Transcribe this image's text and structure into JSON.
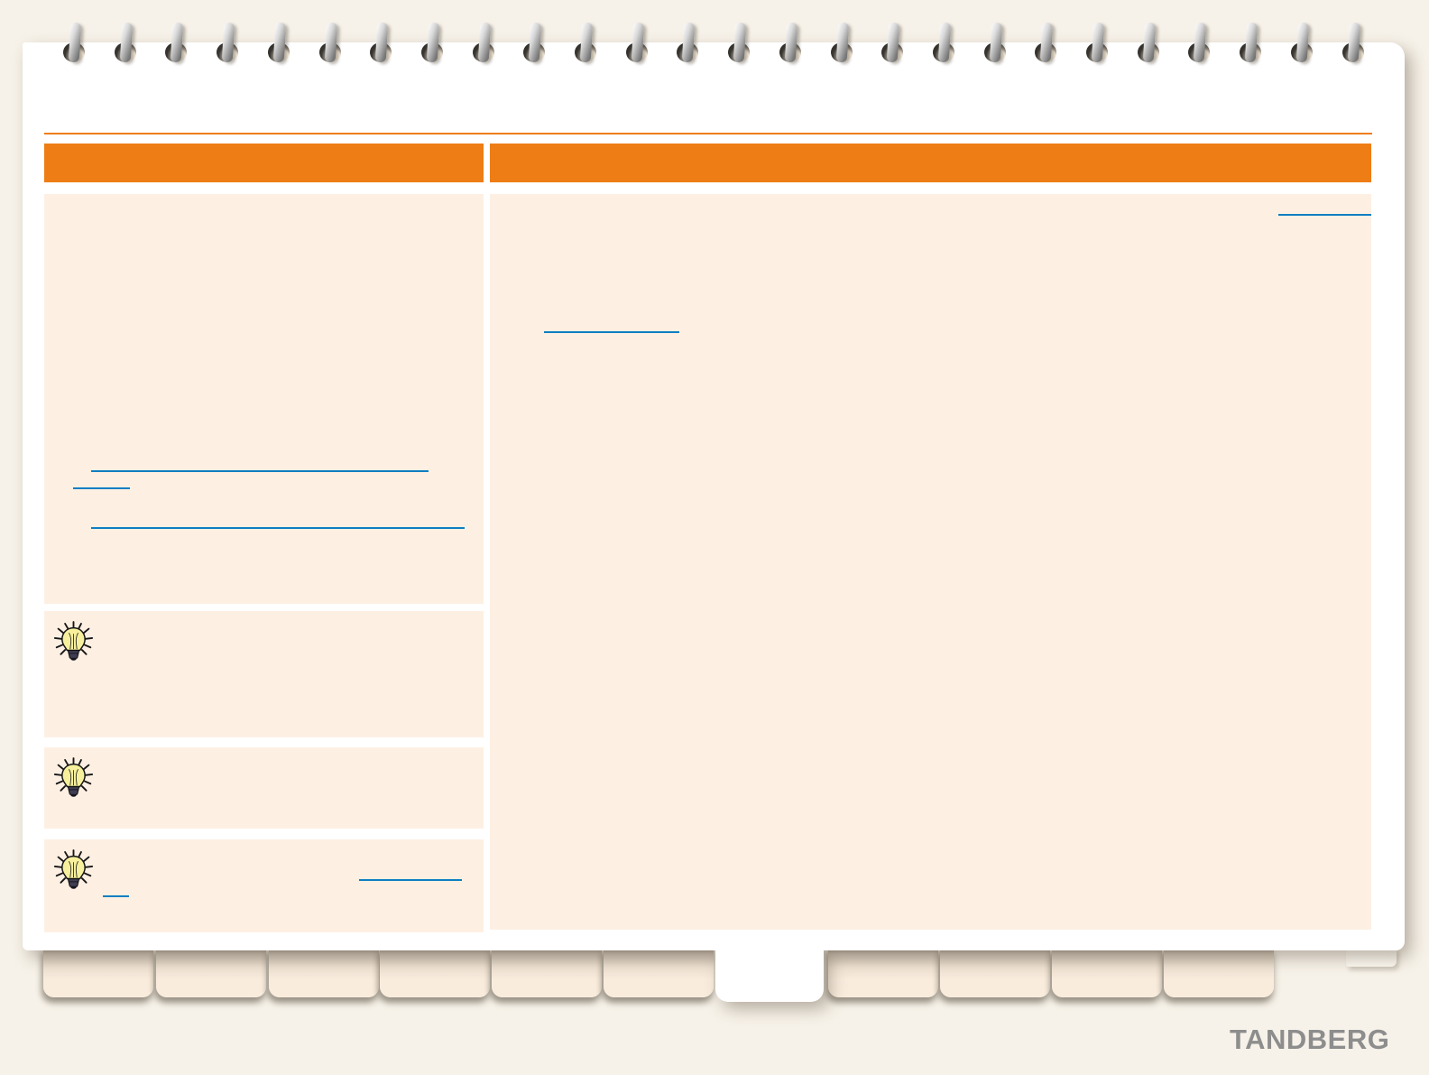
{
  "brand": {
    "logo": "TANDBERG"
  },
  "palette": {
    "canvas_bg": "#f7f2e9",
    "page_bg": "#ffffff",
    "accent_orange": "#ee7d15",
    "panel_peach": "#fdf0e3",
    "tab_peach": "#f9ecdd",
    "link_blue": "#0d7ec1",
    "logo_gray": "#8d8d8d",
    "bulb_yellow": "#f7f09c"
  },
  "binding": {
    "ring_count": 26
  },
  "header": {
    "left_bar": {
      "label": ""
    },
    "right_bar": {
      "label": ""
    }
  },
  "sidebar": {
    "links": [
      {
        "label": ""
      },
      {
        "label": ""
      },
      {
        "label": ""
      }
    ]
  },
  "main": {
    "links": [
      {
        "label": ""
      },
      {
        "label": ""
      }
    ]
  },
  "tips": [
    {
      "icon": "lightbulb-icon",
      "links": []
    },
    {
      "icon": "lightbulb-icon",
      "links": []
    },
    {
      "icon": "lightbulb-icon",
      "links": [
        {
          "label": ""
        },
        {
          "label": ""
        }
      ]
    }
  ],
  "tabs": {
    "active_index": 6,
    "items": [
      {
        "label": ""
      },
      {
        "label": ""
      },
      {
        "label": ""
      },
      {
        "label": ""
      },
      {
        "label": ""
      },
      {
        "label": ""
      },
      {
        "label": ""
      },
      {
        "label": ""
      },
      {
        "label": ""
      },
      {
        "label": ""
      },
      {
        "label": ""
      }
    ]
  }
}
